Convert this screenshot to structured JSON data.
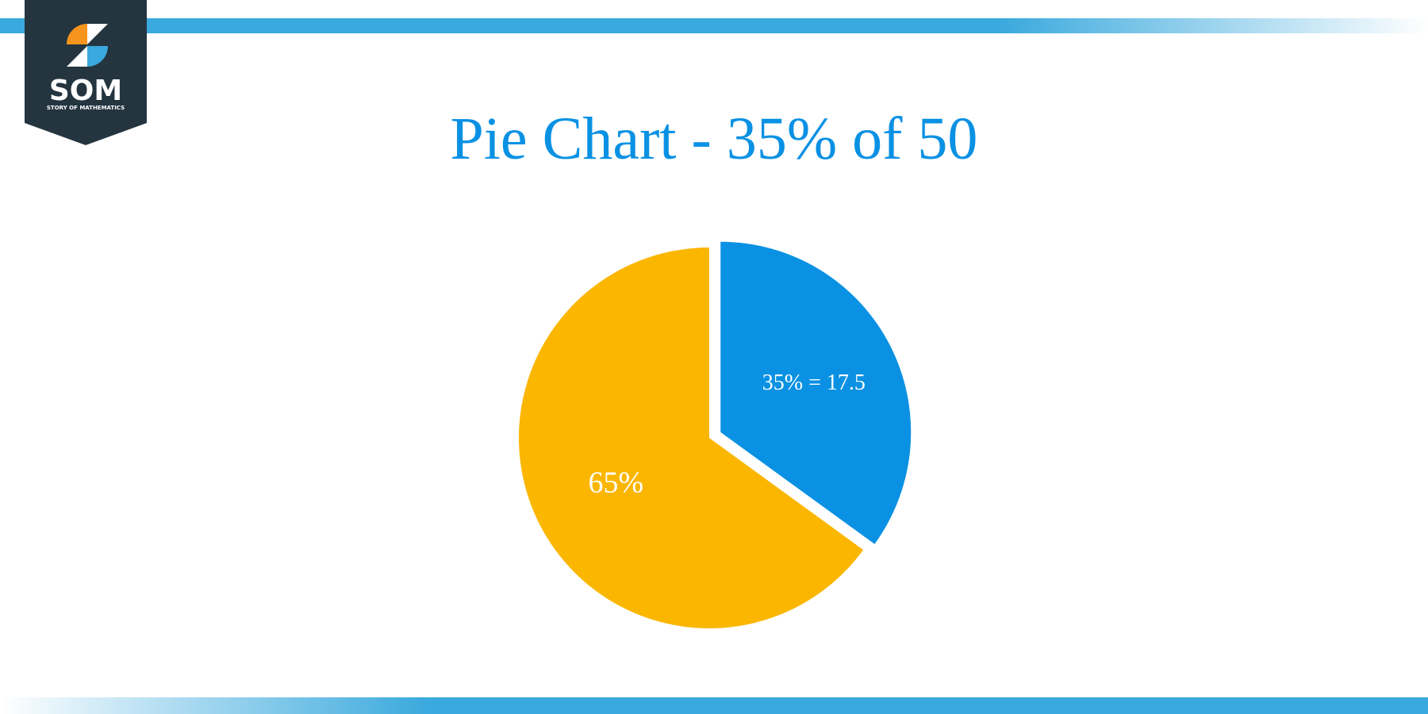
{
  "logo": {
    "name": "SOM",
    "tagline": "STORY OF MATHEMATICS"
  },
  "chart_data": {
    "type": "pie",
    "title": "Pie Chart - 35% of 50",
    "categories": [
      null,
      null
    ],
    "values": [
      35,
      65
    ],
    "value_labels": [
      "35% = 17.5",
      "65%"
    ],
    "colors": [
      "#0a91e3",
      "#fbb600"
    ],
    "exploded": [
      true,
      false
    ]
  }
}
